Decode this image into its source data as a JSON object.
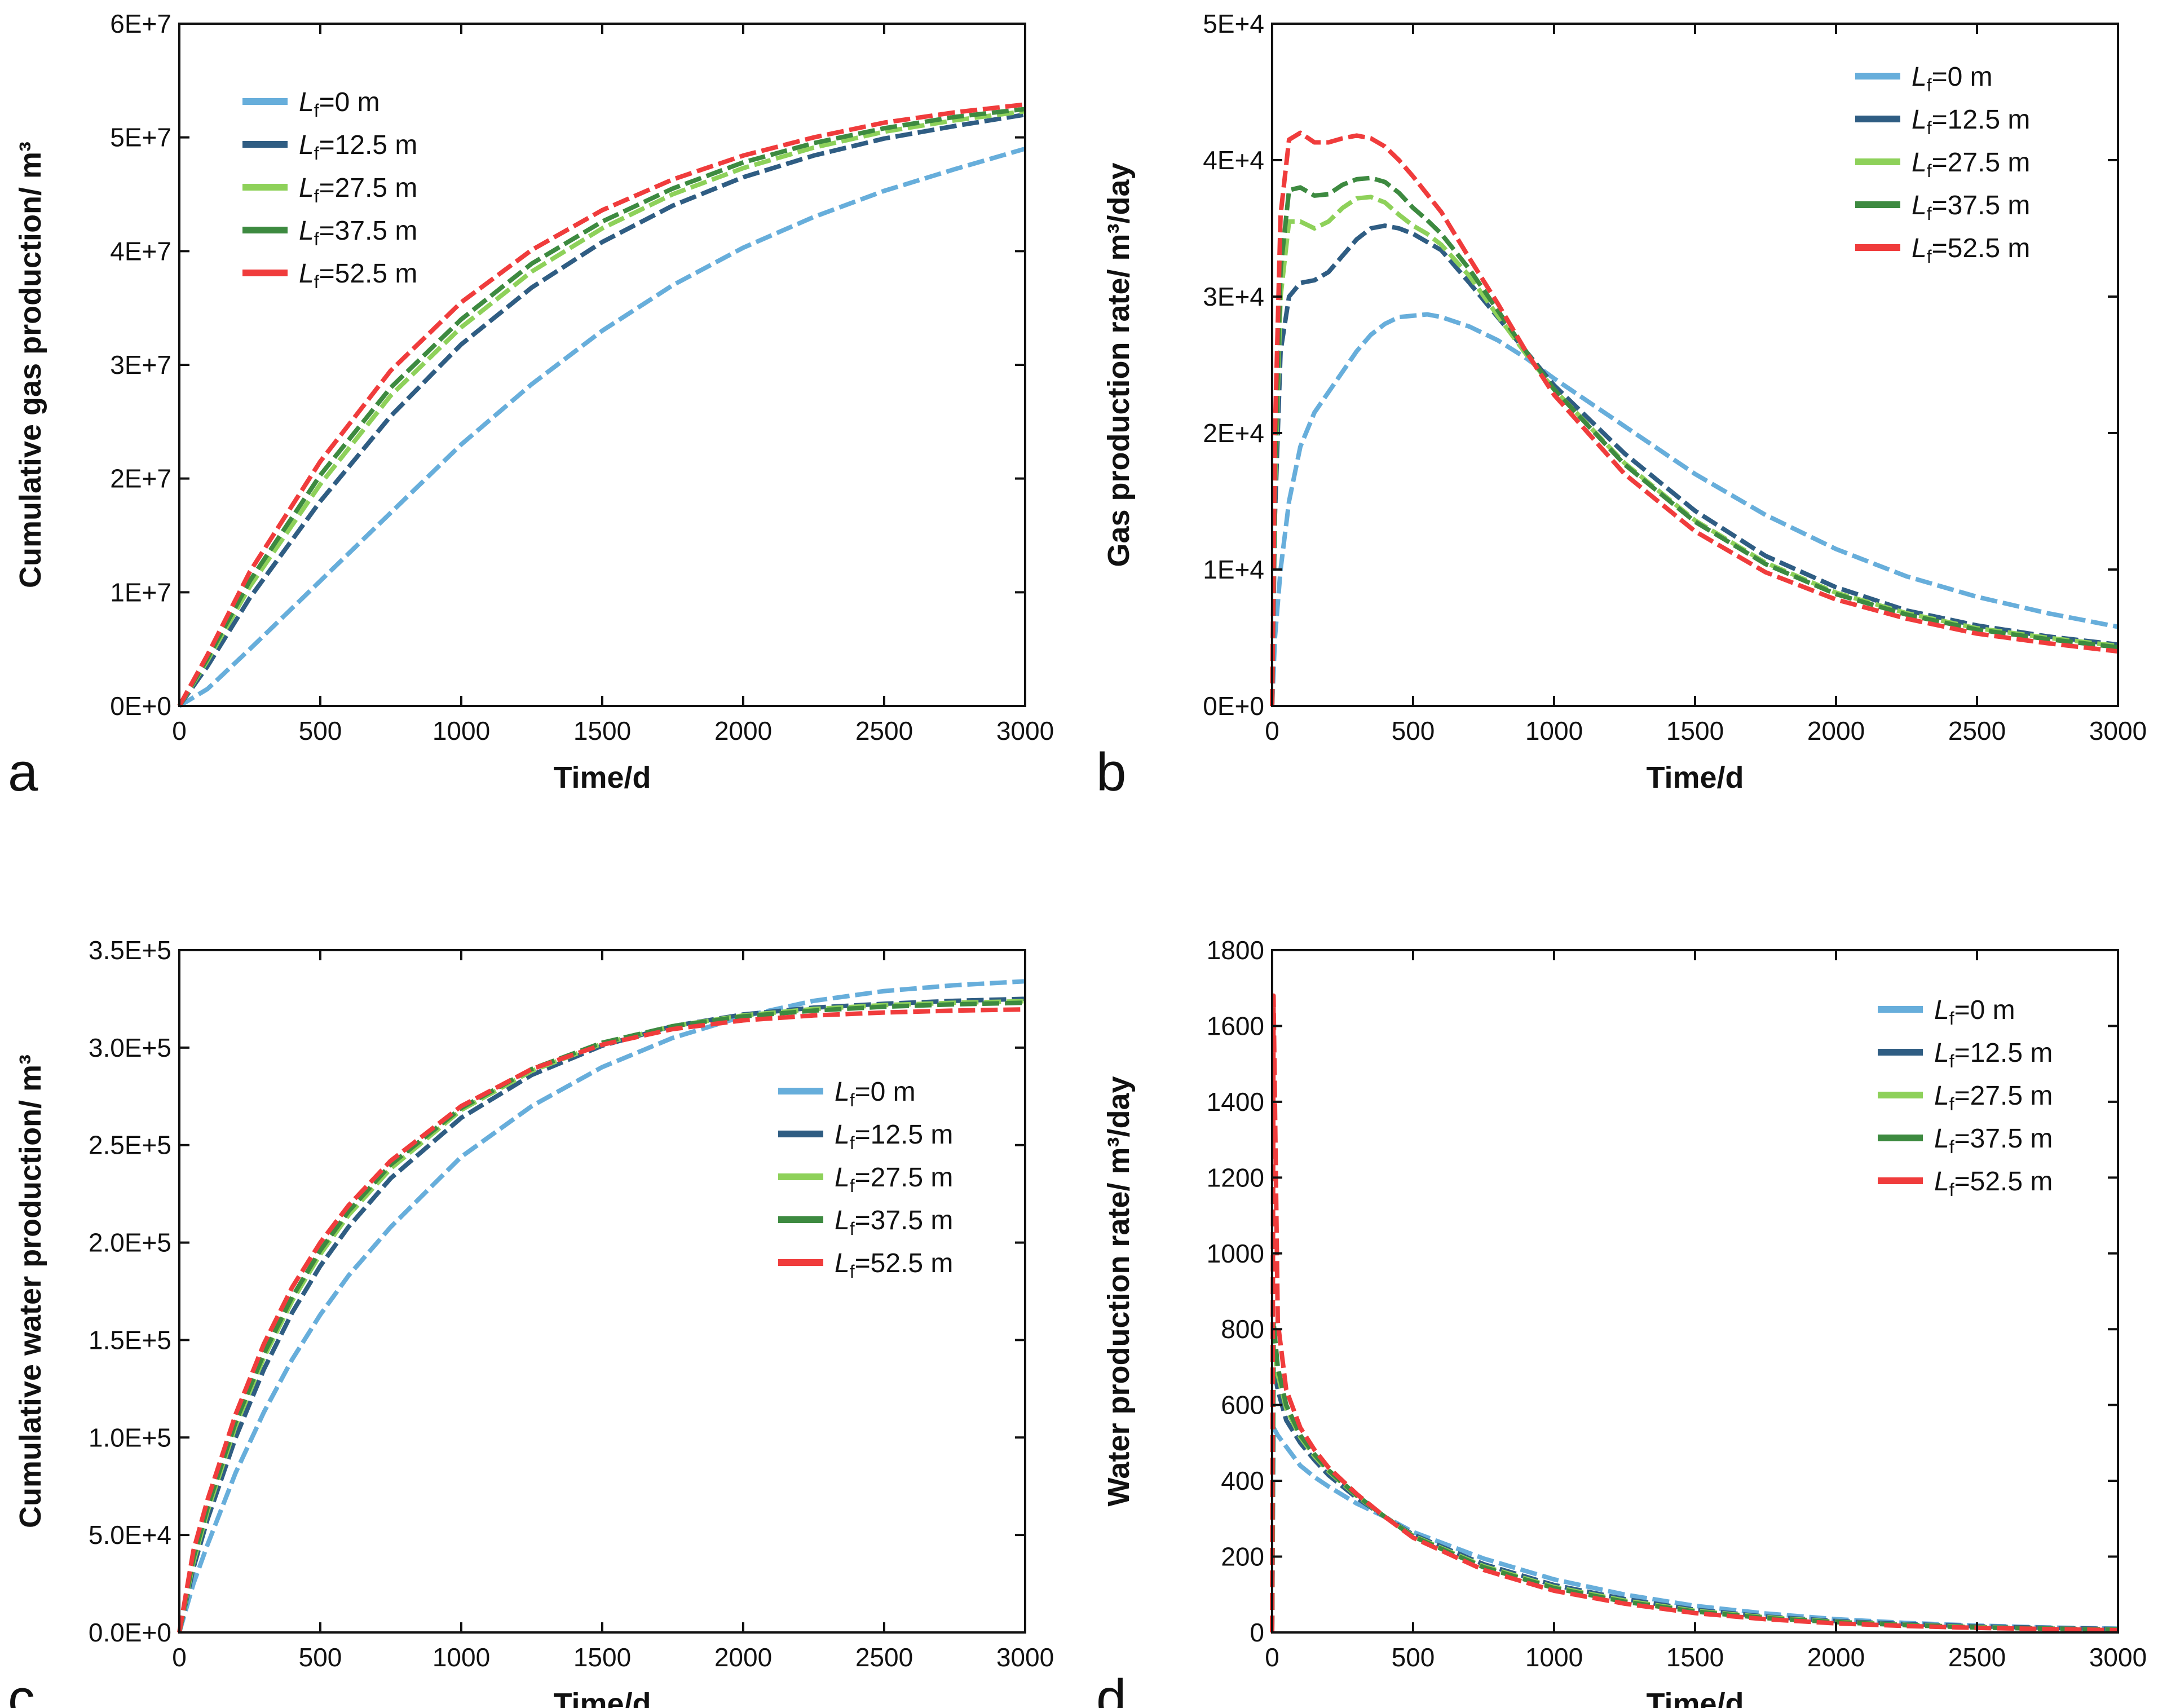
{
  "figure": {
    "colors": {
      "Lf=0 m": "#67aedb",
      "Lf=12.5 m": "#2f5d83",
      "Lf=27.5 m": "#8ed15a",
      "Lf=37.5 m": "#3d8a40",
      "Lf=52.5 m": "#f03c3c"
    }
  },
  "chart_data": [
    {
      "panel": "a",
      "type": "line",
      "xlabel": "Time/d",
      "ylabel": "Cumulative gas production/ m³",
      "xlim": [
        0,
        3000
      ],
      "ylim": [
        0,
        60000000
      ],
      "xticks": [
        0,
        500,
        1000,
        1500,
        2000,
        2500,
        3000
      ],
      "yticks": [
        0,
        10000000,
        20000000,
        30000000,
        40000000,
        50000000,
        60000000
      ],
      "ytick_labels": [
        "0E+0",
        "1E+7",
        "2E+7",
        "3E+7",
        "4E+7",
        "5E+7",
        "6E+7"
      ],
      "legend_position": "top-left",
      "x": [
        0,
        100,
        250,
        500,
        750,
        1000,
        1250,
        1500,
        1750,
        2000,
        2250,
        2500,
        2750,
        3000
      ],
      "series": [
        {
          "name": "Lf=0 m",
          "prefix": "L",
          "sub": "f",
          "suffix": "=0 m",
          "values": [
            0,
            1500000,
            5000000,
            11000000,
            17000000,
            23000000,
            28300000,
            33000000,
            37000000,
            40300000,
            43000000,
            45300000,
            47200000,
            49000000
          ]
        },
        {
          "name": "Lf=12.5 m",
          "prefix": "L",
          "sub": "f",
          "suffix": "=12.5 m",
          "values": [
            0,
            3500000,
            9500000,
            18000000,
            25500000,
            31800000,
            36800000,
            40800000,
            44000000,
            46500000,
            48400000,
            49900000,
            51000000,
            52000000
          ]
        },
        {
          "name": "Lf=27.5 m",
          "prefix": "L",
          "sub": "f",
          "suffix": "=27.5 m",
          "values": [
            0,
            4000000,
            10500000,
            19500000,
            27300000,
            33300000,
            38200000,
            42000000,
            45000000,
            47300000,
            49100000,
            50500000,
            51500000,
            52300000
          ]
        },
        {
          "name": "Lf=37.5 m",
          "prefix": "L",
          "sub": "f",
          "suffix": "=37.5 m",
          "values": [
            0,
            4200000,
            11000000,
            20300000,
            28000000,
            34000000,
            38900000,
            42600000,
            45500000,
            47800000,
            49500000,
            50800000,
            51800000,
            52500000
          ]
        },
        {
          "name": "Lf=52.5 m",
          "prefix": "L",
          "sub": "f",
          "suffix": "=52.5 m",
          "values": [
            0,
            4500000,
            11800000,
            21500000,
            29500000,
            35500000,
            40100000,
            43600000,
            46300000,
            48400000,
            50000000,
            51300000,
            52200000,
            52900000
          ]
        }
      ]
    },
    {
      "panel": "b",
      "type": "line",
      "xlabel": "Time/d",
      "ylabel": "Gas production rate/ m³/day",
      "xlim": [
        0,
        3000
      ],
      "ylim": [
        0,
        50000
      ],
      "xticks": [
        0,
        500,
        1000,
        1500,
        2000,
        2500,
        3000
      ],
      "yticks": [
        0,
        10000,
        20000,
        30000,
        40000,
        50000
      ],
      "ytick_labels": [
        "0E+0",
        "1E+4",
        "2E+4",
        "3E+4",
        "4E+4",
        "5E+4"
      ],
      "legend_position": "top-right",
      "x": [
        0,
        10,
        30,
        60,
        100,
        150,
        200,
        250,
        300,
        350,
        400,
        450,
        500,
        550,
        600,
        700,
        800,
        900,
        1000,
        1250,
        1500,
        1750,
        2000,
        2250,
        2500,
        2750,
        3000
      ],
      "series": [
        {
          "name": "Lf=0 m",
          "prefix": "L",
          "sub": "f",
          "suffix": "=0 m",
          "values": [
            0,
            5000,
            10000,
            15000,
            19000,
            21500,
            23000,
            24500,
            26000,
            27200,
            28000,
            28500,
            28600,
            28700,
            28500,
            27800,
            26800,
            25500,
            24000,
            20500,
            17000,
            14000,
            11500,
            9500,
            8000,
            6800,
            5800
          ]
        },
        {
          "name": "Lf=12.5 m",
          "prefix": "L",
          "sub": "f",
          "suffix": "=12.5 m",
          "values": [
            0,
            14000,
            26000,
            30000,
            31000,
            31200,
            31800,
            33000,
            34200,
            35000,
            35200,
            35000,
            34600,
            34000,
            33400,
            31000,
            28500,
            26000,
            23500,
            18500,
            14300,
            11000,
            8700,
            7000,
            5900,
            5100,
            4500
          ]
        },
        {
          "name": "Lf=27.5 m",
          "prefix": "L",
          "sub": "f",
          "suffix": "=27.5 m",
          "values": [
            0,
            16000,
            30000,
            35500,
            35500,
            35000,
            35500,
            36500,
            37200,
            37300,
            36900,
            36000,
            35200,
            34600,
            33800,
            31500,
            28600,
            25800,
            23200,
            17800,
            13600,
            10500,
            8300,
            6800,
            5700,
            5000,
            4400
          ]
        },
        {
          "name": "Lf=37.5 m",
          "prefix": "L",
          "sub": "f",
          "suffix": "=37.5 m",
          "values": [
            0,
            17000,
            32000,
            37800,
            38000,
            37400,
            37500,
            38200,
            38600,
            38700,
            38400,
            37600,
            36500,
            35600,
            34600,
            32000,
            29000,
            26000,
            23200,
            17700,
            13500,
            10400,
            8200,
            6700,
            5600,
            4900,
            4300
          ]
        },
        {
          "name": "Lf=52.5 m",
          "prefix": "L",
          "sub": "f",
          "suffix": "=52.5 m",
          "values": [
            0,
            20000,
            36000,
            41500,
            42000,
            41300,
            41300,
            41600,
            41800,
            41600,
            41000,
            40000,
            38800,
            37500,
            36200,
            32800,
            29500,
            26000,
            22800,
            17000,
            12800,
            9800,
            7800,
            6400,
            5300,
            4600,
            4000
          ]
        }
      ]
    },
    {
      "panel": "c",
      "type": "line",
      "xlabel": "Time/d",
      "ylabel": "Cumulative water production/ m³",
      "xlim": [
        0,
        3000
      ],
      "ylim": [
        0,
        350000
      ],
      "xticks": [
        0,
        500,
        1000,
        1500,
        2000,
        2500,
        3000
      ],
      "yticks": [
        0,
        50000,
        100000,
        150000,
        200000,
        250000,
        300000,
        350000
      ],
      "ytick_labels": [
        "0.0E+0",
        "5.0E+4",
        "1.0E+5",
        "1.5E+5",
        "2.0E+5",
        "2.5E+5",
        "3.0E+5",
        "3.5E+5"
      ],
      "legend_position": "right",
      "x": [
        0,
        50,
        100,
        200,
        300,
        400,
        500,
        600,
        750,
        1000,
        1250,
        1500,
        1750,
        2000,
        2250,
        2500,
        2750,
        3000
      ],
      "series": [
        {
          "name": "Lf=0 m",
          "prefix": "L",
          "sub": "f",
          "suffix": "=0 m",
          "values": [
            0,
            25000,
            45000,
            82000,
            113000,
            140000,
            163000,
            183000,
            208000,
            244000,
            270000,
            290000,
            305000,
            316000,
            324000,
            329000,
            332000,
            334000
          ]
        },
        {
          "name": "Lf=12.5 m",
          "prefix": "L",
          "sub": "f",
          "suffix": "=12.5 m",
          "values": [
            0,
            33000,
            58000,
            100000,
            135000,
            164000,
            188000,
            208000,
            233000,
            264000,
            286000,
            301000,
            311000,
            317000,
            320500,
            322500,
            324000,
            325000
          ]
        },
        {
          "name": "Lf=27.5 m",
          "prefix": "L",
          "sub": "f",
          "suffix": "=27.5 m",
          "values": [
            0,
            36000,
            62000,
            106000,
            141000,
            170000,
            194000,
            214000,
            238000,
            268000,
            288000,
            302000,
            311000,
            316500,
            319800,
            321800,
            323000,
            323800
          ]
        },
        {
          "name": "Lf=37.5 m",
          "prefix": "L",
          "sub": "f",
          "suffix": "=37.5 m",
          "values": [
            0,
            38000,
            64000,
            108000,
            143000,
            172000,
            196000,
            216000,
            240000,
            269000,
            289000,
            302500,
            311000,
            316000,
            319000,
            321000,
            322200,
            323000
          ]
        },
        {
          "name": "Lf=52.5 m",
          "prefix": "L",
          "sub": "f",
          "suffix": "=52.5 m",
          "values": [
            0,
            42000,
            68000,
            112000,
            148000,
            177000,
            200000,
            219000,
            242000,
            270000,
            289000,
            301500,
            309500,
            314000,
            316500,
            318000,
            319000,
            319600
          ]
        }
      ]
    },
    {
      "panel": "d",
      "type": "line",
      "xlabel": "Time/d",
      "ylabel": "Water production rate/ m³/day",
      "xlim": [
        0,
        3000
      ],
      "ylim": [
        0,
        1800
      ],
      "xticks": [
        0,
        500,
        1000,
        1500,
        2000,
        2500,
        3000
      ],
      "yticks": [
        0,
        200,
        400,
        600,
        800,
        1000,
        1200,
        1400,
        1600,
        1800
      ],
      "ytick_labels": [
        "0",
        "200",
        "400",
        "600",
        "800",
        "1000",
        "1200",
        "1400",
        "1600",
        "1800"
      ],
      "legend_position": "top-right",
      "x": [
        0,
        5,
        20,
        50,
        100,
        150,
        200,
        300,
        400,
        500,
        750,
        1000,
        1250,
        1500,
        1750,
        2000,
        2250,
        2500,
        2750,
        3000
      ],
      "series": [
        {
          "name": "Lf=0 m",
          "prefix": "L",
          "sub": "f",
          "suffix": "=0 m",
          "values": [
            0,
            540,
            520,
            490,
            440,
            410,
            385,
            340,
            305,
            265,
            195,
            140,
            100,
            70,
            50,
            35,
            25,
            18,
            13,
            10
          ]
        },
        {
          "name": "Lf=12.5 m",
          "prefix": "L",
          "sub": "f",
          "suffix": "=12.5 m",
          "values": [
            0,
            700,
            640,
            560,
            500,
            455,
            415,
            355,
            305,
            258,
            180,
            125,
            88,
            60,
            42,
            30,
            22,
            16,
            12,
            9
          ]
        },
        {
          "name": "Lf=27.5 m",
          "prefix": "L",
          "sub": "f",
          "suffix": "=27.5 m",
          "values": [
            0,
            760,
            680,
            590,
            515,
            465,
            425,
            360,
            305,
            255,
            175,
            120,
            84,
            57,
            40,
            28,
            20,
            14,
            10,
            8
          ]
        },
        {
          "name": "Lf=37.5 m",
          "prefix": "L",
          "sub": "f",
          "suffix": "=37.5 m",
          "values": [
            0,
            820,
            700,
            600,
            520,
            470,
            428,
            362,
            305,
            253,
            172,
            117,
            81,
            55,
            38,
            27,
            19,
            13,
            10,
            7
          ]
        },
        {
          "name": "Lf=52.5 m",
          "prefix": "L",
          "sub": "f",
          "suffix": "=52.5 m",
          "values": [
            0,
            1680,
            820,
            640,
            540,
            482,
            435,
            365,
            305,
            250,
            165,
            110,
            76,
            51,
            35,
            24,
            17,
            12,
            9,
            6
          ]
        }
      ]
    }
  ]
}
